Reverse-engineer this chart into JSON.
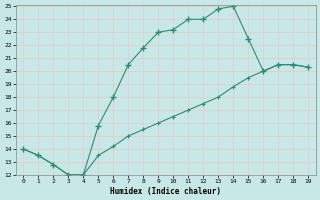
{
  "xlabel": "Humidex (Indice chaleur)",
  "line1_x": [
    0,
    1,
    2,
    3,
    4,
    5,
    6,
    7,
    8,
    9,
    10,
    11,
    12,
    13,
    14,
    15,
    16,
    17,
    18,
    19
  ],
  "line1_y": [
    14.0,
    13.5,
    12.8,
    12.0,
    12.0,
    15.8,
    18.0,
    20.5,
    21.8,
    23.0,
    23.2,
    24.0,
    24.0,
    24.8,
    25.0,
    22.5,
    20.0,
    20.5,
    20.5,
    20.3
  ],
  "line2_x": [
    0,
    1,
    2,
    3,
    4,
    5,
    6,
    7,
    8,
    9,
    10,
    11,
    12,
    13,
    14,
    15,
    16,
    17,
    18,
    19
  ],
  "line2_y": [
    14.0,
    13.5,
    12.8,
    12.0,
    12.0,
    13.5,
    14.2,
    15.0,
    15.5,
    16.0,
    16.5,
    17.0,
    17.5,
    18.0,
    18.8,
    19.5,
    20.0,
    20.5,
    20.5,
    20.3
  ],
  "line_color": "#2e8b74",
  "bg_color": "#c8e8e8",
  "grid_color": "#b0d8d8",
  "ylim": [
    12,
    25
  ],
  "xlim": [
    -0.5,
    19.5
  ],
  "yticks": [
    12,
    13,
    14,
    15,
    16,
    17,
    18,
    19,
    20,
    21,
    22,
    23,
    24,
    25
  ],
  "xticks": [
    0,
    1,
    2,
    3,
    4,
    5,
    6,
    7,
    8,
    9,
    10,
    11,
    12,
    13,
    14,
    15,
    16,
    17,
    18,
    19
  ]
}
